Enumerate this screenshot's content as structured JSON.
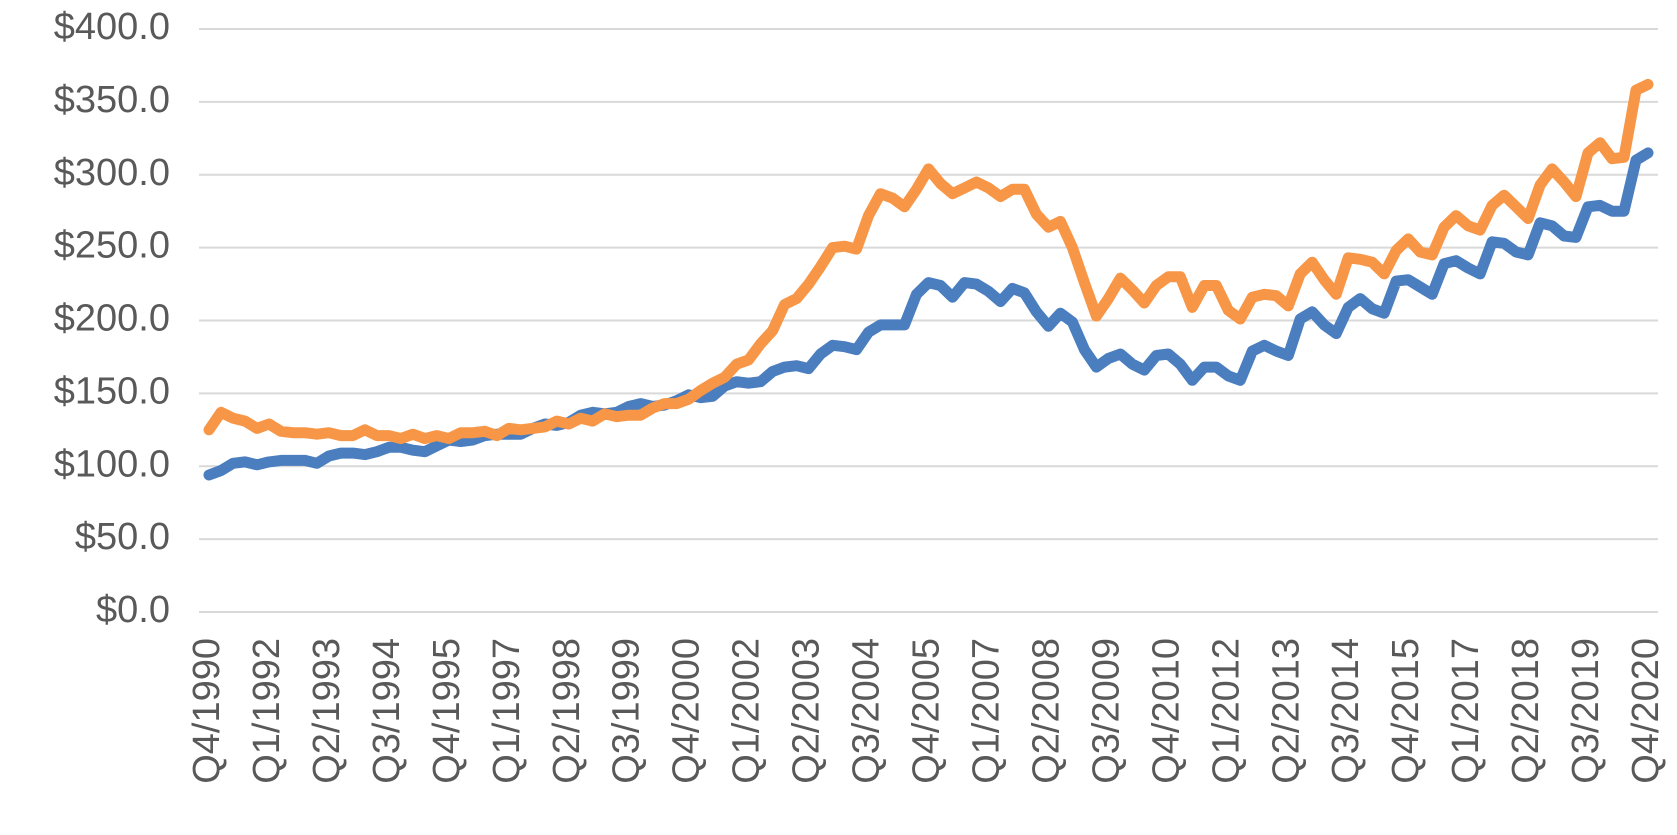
{
  "chart_data": {
    "type": "line",
    "categories": [
      "Q4/1990",
      null,
      null,
      null,
      null,
      "Q1/1992",
      null,
      null,
      null,
      null,
      "Q2/1993",
      null,
      null,
      null,
      null,
      "Q3/1994",
      null,
      null,
      null,
      null,
      "Q4/1995",
      null,
      null,
      null,
      null,
      "Q1/1997",
      null,
      null,
      null,
      null,
      "Q2/1998",
      null,
      null,
      null,
      null,
      "Q3/1999",
      null,
      null,
      null,
      null,
      "Q4/2000",
      null,
      null,
      null,
      null,
      "Q1/2002",
      null,
      null,
      null,
      null,
      "Q2/2003",
      null,
      null,
      null,
      null,
      "Q3/2004",
      null,
      null,
      null,
      null,
      "Q4/2005",
      null,
      null,
      null,
      null,
      "Q1/2007",
      null,
      null,
      null,
      null,
      "Q2/2008",
      null,
      null,
      null,
      null,
      "Q3/2009",
      null,
      null,
      null,
      null,
      "Q4/2010",
      null,
      null,
      null,
      null,
      "Q1/2012",
      null,
      null,
      null,
      null,
      "Q2/2013",
      null,
      null,
      null,
      null,
      "Q3/2014",
      null,
      null,
      null,
      null,
      "Q4/2015",
      null,
      null,
      null,
      null,
      "Q1/2017",
      null,
      null,
      null,
      null,
      "Q2/2018",
      null,
      null,
      null,
      null,
      "Q3/2019",
      null,
      null,
      null,
      null,
      "Q4/2020"
    ],
    "series": [
      {
        "color": "#4a7ebf",
        "values": [
          94,
          97,
          102,
          103,
          101,
          103,
          104,
          104,
          104,
          102,
          107,
          109,
          109,
          108,
          110,
          113,
          113,
          111,
          110,
          114,
          118,
          117,
          118,
          121,
          122,
          122,
          122,
          126,
          129,
          128,
          130,
          135,
          137,
          136,
          137,
          141,
          143,
          141,
          142,
          145,
          149,
          147,
          148,
          155,
          158,
          157,
          158,
          165,
          168,
          169,
          167,
          177,
          183,
          182,
          180,
          192,
          197,
          197,
          197,
          218,
          226,
          224,
          216,
          226,
          225,
          220,
          213,
          222,
          219,
          206,
          196,
          205,
          199,
          180,
          168,
          174,
          177,
          170,
          166,
          176,
          177,
          170,
          159,
          168,
          168,
          162,
          159,
          179,
          183,
          179,
          176,
          201,
          206,
          197,
          191,
          209,
          215,
          208,
          205,
          227,
          228,
          223,
          218,
          239,
          241,
          236,
          232,
          254,
          253,
          247,
          245,
          267,
          265,
          258,
          257,
          278,
          279,
          275,
          275,
          310,
          315
        ]
      },
      {
        "color": "#f79646",
        "values": [
          125,
          137,
          133,
          131,
          126,
          129,
          124,
          123,
          123,
          122,
          123,
          121,
          121,
          125,
          121,
          121,
          119,
          122,
          119,
          121,
          119,
          123,
          123,
          124,
          121,
          126,
          125,
          126,
          127,
          131,
          129,
          133,
          131,
          136,
          134,
          135,
          135,
          140,
          143,
          143,
          146,
          152,
          157,
          161,
          170,
          173,
          184,
          193,
          211,
          215,
          225,
          237,
          250,
          251,
          249,
          272,
          287,
          284,
          278,
          290,
          304,
          294,
          287,
          291,
          295,
          291,
          285,
          290,
          290,
          273,
          264,
          268,
          250,
          226,
          203,
          215,
          229,
          221,
          212,
          224,
          230,
          230,
          209,
          224,
          224,
          207,
          201,
          216,
          218,
          217,
          210,
          232,
          240,
          228,
          218,
          243,
          242,
          240,
          232,
          248,
          256,
          247,
          245,
          264,
          272,
          265,
          262,
          279,
          286,
          278,
          270,
          293,
          304,
          295,
          285,
          315,
          322,
          311,
          312,
          358,
          362
        ]
      }
    ],
    "ylim": [
      0,
      400
    ],
    "yticks": [
      {
        "value": 0,
        "label": "$0.0"
      },
      {
        "value": 50,
        "label": "$50.0"
      },
      {
        "value": 100,
        "label": "$100.0"
      },
      {
        "value": 150,
        "label": "$150.0"
      },
      {
        "value": 200,
        "label": "$200.0"
      },
      {
        "value": 250,
        "label": "$250.0"
      },
      {
        "value": 300,
        "label": "$300.0"
      },
      {
        "value": 350,
        "label": "$350.0"
      },
      {
        "value": 400,
        "label": "$400.0"
      }
    ],
    "grid": true
  }
}
